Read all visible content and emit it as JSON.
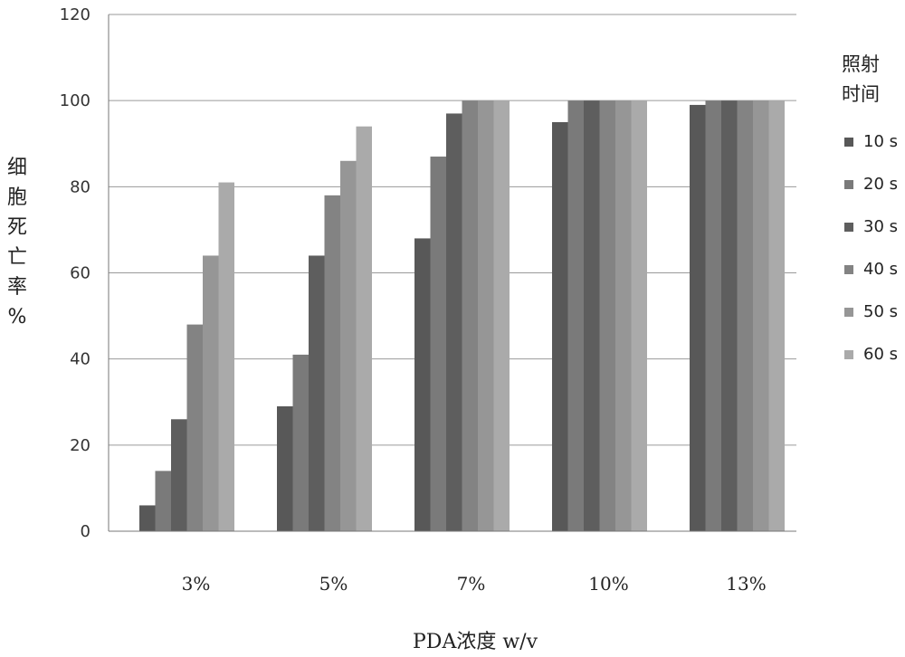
{
  "chart_data": {
    "type": "bar",
    "title": "",
    "xlabel": "PDA浓度 w/v",
    "ylabel": "细胞死亡率%",
    "ylim": [
      0,
      120
    ],
    "yticks": [
      0,
      20,
      40,
      60,
      80,
      100,
      120
    ],
    "grid": true,
    "legend_title": "照射时间",
    "legend_position": "right",
    "categories": [
      "3%",
      "5%",
      "7%",
      "10%",
      "13%"
    ],
    "series": [
      {
        "name": "10 s",
        "color": "#585858",
        "values": [
          6,
          29,
          68,
          95,
          99
        ]
      },
      {
        "name": "20 s",
        "color": "#7a7a7a",
        "values": [
          14,
          41,
          87,
          100,
          100
        ]
      },
      {
        "name": "30 s",
        "color": "#5e5e5e",
        "values": [
          26,
          64,
          97,
          100,
          100
        ]
      },
      {
        "name": "40 s",
        "color": "#838383",
        "values": [
          48,
          78,
          100,
          100,
          100
        ]
      },
      {
        "name": "50 s",
        "color": "#969696",
        "values": [
          64,
          86,
          100,
          100,
          100
        ]
      },
      {
        "name": "60 s",
        "color": "#aaaaaa",
        "values": [
          81,
          94,
          100,
          100,
          100
        ]
      }
    ]
  }
}
